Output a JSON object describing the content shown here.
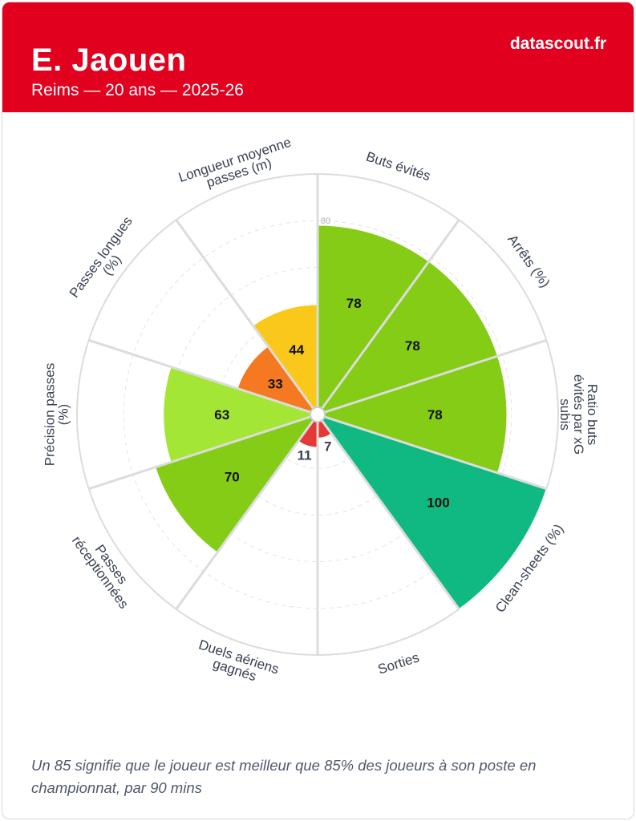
{
  "header": {
    "player_name": "E. Jaouen",
    "subtitle": "Reims — 20 ans — 2025-26",
    "brand": "datascout.fr"
  },
  "footnote": "Un 85 signifie que le joueur est meilleur que 85% des joueurs à son poste en championnat, par 90 mins",
  "colors": {
    "brand_red": "#e1001e",
    "grid": "#dcdcdc",
    "scale": [
      "#d32f2f",
      "#f47920",
      "#f9c81a",
      "#a3e635",
      "#84cc16",
      "#10b981"
    ]
  },
  "chart_data": {
    "type": "polar_bar",
    "title": "E. Jaouen",
    "rmax": 100,
    "ring_label": "80",
    "categories": [
      {
        "label": "Buts évités",
        "value": 78,
        "color": "#84cc16"
      },
      {
        "label": "Arrêts (%)",
        "value": 78,
        "color": "#84cc16"
      },
      {
        "label": "Ratio buts évités par xG subis",
        "value": 78,
        "color": "#84cc16"
      },
      {
        "label": "Clean-sheets (%)",
        "value": 100,
        "color": "#10b981"
      },
      {
        "label": "Sorties",
        "value": 7,
        "color": "#e53935"
      },
      {
        "label": "Duels aériens gagnés",
        "value": 11,
        "color": "#e53935"
      },
      {
        "label": "Passes réceptionnées",
        "value": 70,
        "color": "#84cc16"
      },
      {
        "label": "Précision passes (%)",
        "value": 63,
        "color": "#a3e635"
      },
      {
        "label": "Passes longues (%)",
        "value": 33,
        "color": "#f47920"
      },
      {
        "label": "Longueur moyenne passes (m)",
        "value": 44,
        "color": "#f9c81a"
      }
    ]
  }
}
